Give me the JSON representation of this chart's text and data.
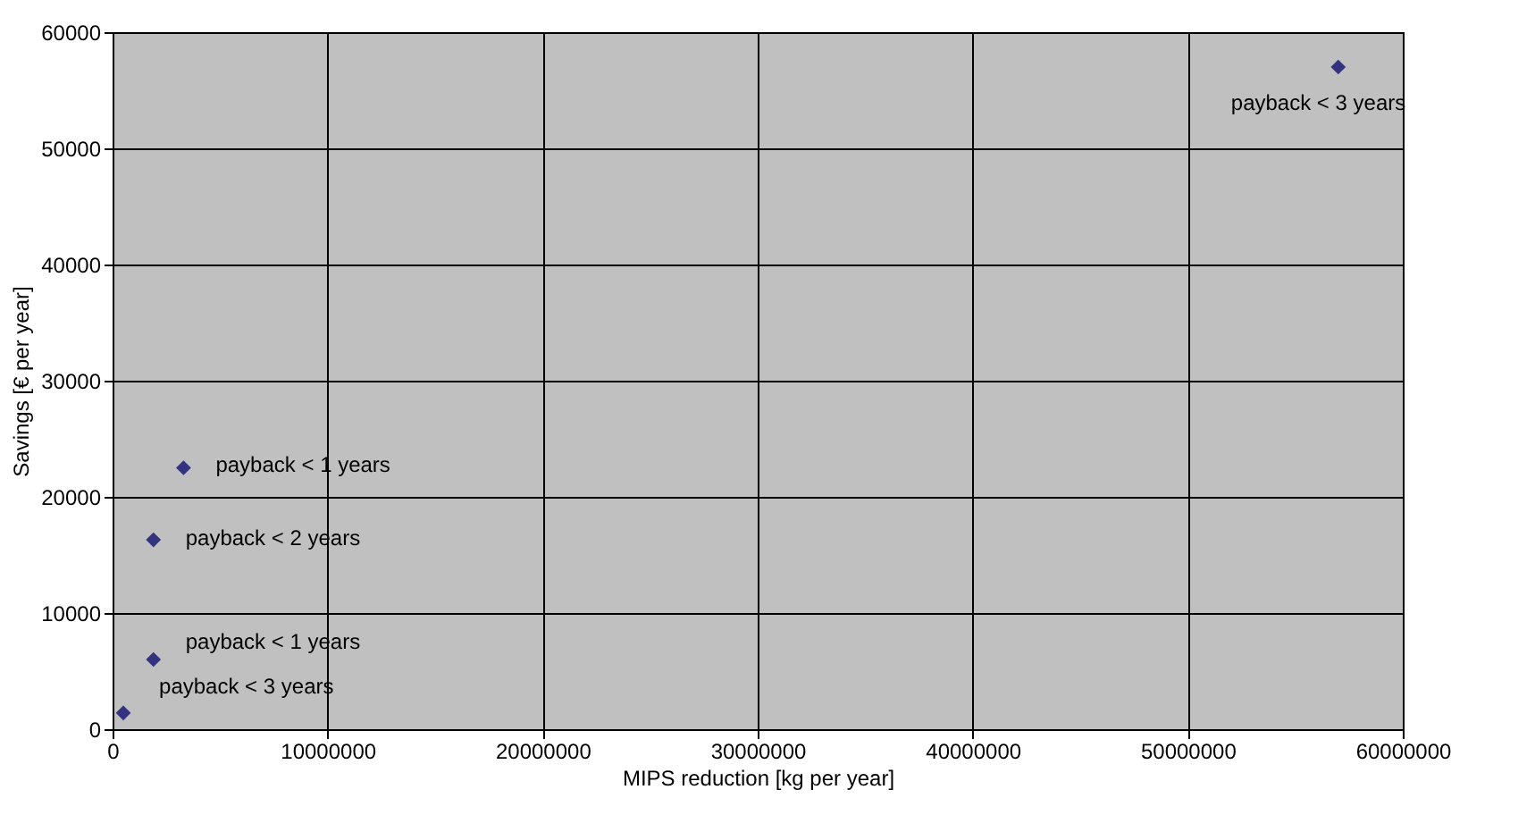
{
  "chart_data": {
    "type": "scatter",
    "xlabel": "MIPS reduction  [kg per year]",
    "ylabel": "Savings [€ per year]",
    "x": [
      57000000,
      3300000,
      1900000,
      1900000,
      500000
    ],
    "series": [
      {
        "color": "#333380",
        "values": [
          57000,
          22500,
          16300,
          6000,
          1400
        ]
      }
    ],
    "marker": "diamond",
    "grid": true,
    "xlim": [
      0,
      60000000
    ],
    "xticks": [
      0,
      10000000,
      20000000,
      30000000,
      40000000,
      50000000,
      60000000
    ],
    "ylim": [
      0,
      60000
    ],
    "yticks": [
      0,
      10000,
      20000,
      30000,
      40000,
      50000,
      60000
    ],
    "annotations": [
      {
        "text": "payback < 3 years",
        "x": 57000000,
        "y": 57000
      },
      {
        "text": "payback < 1 years",
        "x": 3300000,
        "y": 22500
      },
      {
        "text": "payback < 2 years",
        "x": 1900000,
        "y": 16300
      },
      {
        "text": "payback < 1 years",
        "x": 1900000,
        "y": 6000
      },
      {
        "text": "payback < 3 years",
        "x": 500000,
        "y": 1400
      }
    ]
  }
}
